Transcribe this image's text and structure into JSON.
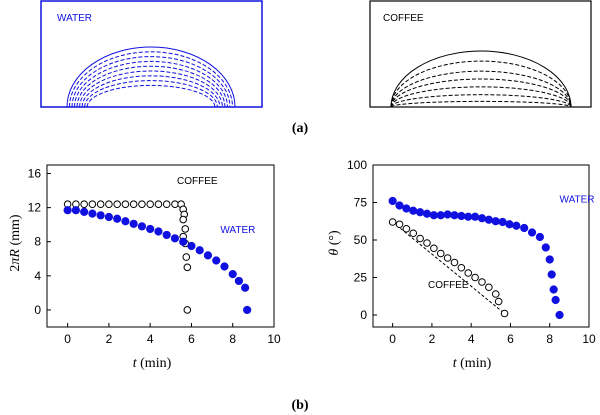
{
  "colors": {
    "water": "#1010e0",
    "coffee": "#000000",
    "axis": "#000000"
  },
  "panel_a": {
    "label": "(a)",
    "water_title": "WATER",
    "coffee_title": "COFFEE",
    "water_profiles": {
      "base_radius": [
        1.0,
        0.97,
        0.94,
        0.91,
        0.88,
        0.85,
        0.82,
        0.79,
        0.76
      ],
      "height": [
        1.0,
        0.92,
        0.84,
        0.76,
        0.68,
        0.6,
        0.52,
        0.44,
        0.36
      ]
    },
    "coffee_profiles": {
      "height": [
        1.0,
        0.82,
        0.64,
        0.5,
        0.36,
        0.22,
        0.1
      ]
    }
  },
  "panel_b": {
    "label": "(b)"
  },
  "chart_data": [
    {
      "type": "scatter",
      "xlabel_var": "t",
      "xlabel_unit": "(min)",
      "ylabel_prefix": "2",
      "ylabel_pi": "π",
      "ylabel_var": "R",
      "ylabel_unit": "(mm)",
      "xlim": [
        -1,
        10
      ],
      "ylim": [
        -2,
        17
      ],
      "xticks": [
        0,
        2,
        4,
        6,
        8,
        10
      ],
      "yticks": [
        0,
        4,
        8,
        12,
        16
      ],
      "annotations": [
        {
          "text": "COFFEE",
          "series": "COFFEE",
          "x": 5.3,
          "y": 14.8
        },
        {
          "text": "WATER",
          "series": "WATER",
          "x": 7.4,
          "y": 9.0
        }
      ],
      "series": [
        {
          "name": "COFFEE",
          "marker": "open-circle",
          "points": [
            [
              0,
              12.4
            ],
            [
              0.4,
              12.4
            ],
            [
              0.8,
              12.4
            ],
            [
              1.2,
              12.4
            ],
            [
              1.6,
              12.4
            ],
            [
              2.0,
              12.4
            ],
            [
              2.4,
              12.4
            ],
            [
              2.8,
              12.4
            ],
            [
              3.2,
              12.4
            ],
            [
              3.6,
              12.4
            ],
            [
              4.0,
              12.4
            ],
            [
              4.4,
              12.4
            ],
            [
              4.8,
              12.4
            ],
            [
              5.2,
              12.4
            ],
            [
              5.5,
              12.4
            ],
            [
              5.6,
              11.8
            ],
            [
              5.65,
              11.2
            ],
            [
              5.6,
              10.6
            ],
            [
              5.7,
              9.5
            ],
            [
              5.6,
              8.6
            ],
            [
              5.7,
              7.8
            ],
            [
              5.75,
              6.2
            ],
            [
              5.8,
              5.0
            ],
            [
              5.8,
              0.0
            ]
          ]
        },
        {
          "name": "WATER",
          "marker": "filled-circle",
          "points": [
            [
              0,
              11.7
            ],
            [
              0.4,
              11.7
            ],
            [
              0.8,
              11.5
            ],
            [
              1.2,
              11.3
            ],
            [
              1.6,
              11.1
            ],
            [
              2.0,
              10.9
            ],
            [
              2.4,
              10.7
            ],
            [
              2.8,
              10.4
            ],
            [
              3.2,
              10.1
            ],
            [
              3.6,
              9.8
            ],
            [
              4.0,
              9.5
            ],
            [
              4.4,
              9.2
            ],
            [
              4.8,
              8.8
            ],
            [
              5.2,
              8.4
            ],
            [
              5.6,
              8.0
            ],
            [
              6.0,
              7.5
            ],
            [
              6.4,
              7.0
            ],
            [
              6.8,
              6.4
            ],
            [
              7.2,
              5.8
            ],
            [
              7.6,
              5.1
            ],
            [
              8.0,
              4.2
            ],
            [
              8.3,
              3.4
            ],
            [
              8.6,
              2.6
            ],
            [
              8.7,
              0.0
            ]
          ]
        }
      ]
    },
    {
      "type": "scatter",
      "xlabel_var": "t",
      "xlabel_unit": "(min)",
      "ylabel_var": "θ",
      "ylabel_unit": "(°)",
      "xlim": [
        -1,
        10
      ],
      "ylim": [
        -8,
        100
      ],
      "xticks": [
        0,
        2,
        4,
        6,
        8,
        10
      ],
      "yticks": [
        0,
        25,
        50,
        75,
        100
      ],
      "annotations": [
        {
          "text": "WATER",
          "series": "WATER",
          "x": 8.5,
          "y": 75
        },
        {
          "text": "COFFEE",
          "series": "COFFEE",
          "x": 1.8,
          "y": 18
        }
      ],
      "series": [
        {
          "name": "COFFEE",
          "marker": "open-circle",
          "fit_line": true,
          "points": [
            [
              0,
              62
            ],
            [
              0.35,
              60.5
            ],
            [
              0.7,
              57.5
            ],
            [
              1.05,
              54.5
            ],
            [
              1.4,
              51
            ],
            [
              1.75,
              48
            ],
            [
              2.1,
              44.5
            ],
            [
              2.45,
              41
            ],
            [
              2.8,
              38
            ],
            [
              3.15,
              35
            ],
            [
              3.5,
              31.5
            ],
            [
              3.85,
              28
            ],
            [
              4.2,
              25
            ],
            [
              4.55,
              22
            ],
            [
              4.9,
              18.5
            ],
            [
              5.25,
              14
            ],
            [
              5.4,
              9
            ],
            [
              5.7,
              1
            ]
          ]
        },
        {
          "name": "WATER",
          "marker": "filled-circle",
          "points": [
            [
              0,
              76
            ],
            [
              0.35,
              73
            ],
            [
              0.7,
              71
            ],
            [
              1.05,
              69.5
            ],
            [
              1.4,
              68.5
            ],
            [
              1.75,
              67.5
            ],
            [
              2.1,
              66.5
            ],
            [
              2.45,
              66.5
            ],
            [
              2.8,
              67.0
            ],
            [
              3.15,
              66.5
            ],
            [
              3.5,
              66
            ],
            [
              3.85,
              65.5
            ],
            [
              4.2,
              65.5
            ],
            [
              4.55,
              64.5
            ],
            [
              4.9,
              63.5
            ],
            [
              5.25,
              62.5
            ],
            [
              5.6,
              62
            ],
            [
              5.95,
              60.5
            ],
            [
              6.3,
              59.5
            ],
            [
              6.7,
              58
            ],
            [
              7.1,
              55
            ],
            [
              7.5,
              52
            ],
            [
              7.8,
              45
            ],
            [
              8.0,
              37
            ],
            [
              8.1,
              27
            ],
            [
              8.2,
              17
            ],
            [
              8.3,
              10
            ],
            [
              8.5,
              0
            ]
          ]
        }
      ]
    }
  ]
}
